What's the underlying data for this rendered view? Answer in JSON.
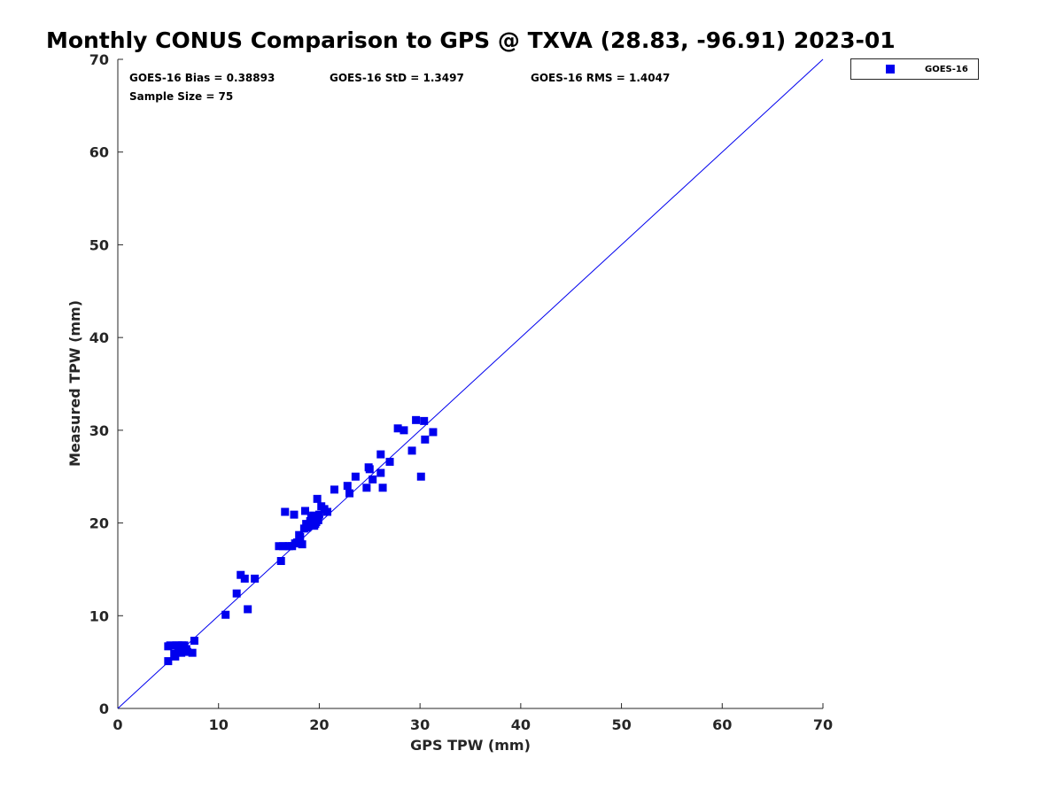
{
  "chart_data": {
    "type": "scatter",
    "title": "Monthly CONUS Comparison to GPS @ TXVA (28.83, -96.91) 2023-01",
    "xlabel": "GPS TPW (mm)",
    "ylabel": "Measured TPW (mm)",
    "xlim": [
      0,
      70
    ],
    "ylim": [
      0,
      70
    ],
    "xticks": [
      0,
      10,
      20,
      30,
      40,
      50,
      60,
      70
    ],
    "yticks": [
      0,
      10,
      20,
      30,
      40,
      50,
      60,
      70
    ],
    "grid": false,
    "legend_position": "outside-top-right",
    "reference_line": {
      "from": [
        0,
        0
      ],
      "to": [
        70,
        70
      ],
      "color": "#0000ee"
    },
    "stats": {
      "bias": "GOES-16 Bias = 0.38893",
      "std": "GOES-16 StD = 1.3497",
      "rms": "GOES-16 RMS = 1.4047",
      "sample_size": "Sample Size = 75"
    },
    "series": [
      {
        "name": "GOES-16",
        "color": "#0000ee",
        "marker": "square",
        "x": [
          5.0,
          5.0,
          5.2,
          5.6,
          5.7,
          5.8,
          6.0,
          6.0,
          6.1,
          6.2,
          6.3,
          6.4,
          6.5,
          6.6,
          7.4,
          7.6,
          10.7,
          11.8,
          12.2,
          12.6,
          12.9,
          13.6,
          16.0,
          16.2,
          16.4,
          16.6,
          16.8,
          17.0,
          17.3,
          17.5,
          17.6,
          17.8,
          18.0,
          18.1,
          18.3,
          18.5,
          18.6,
          18.8,
          18.9,
          19.1,
          19.2,
          19.4,
          19.5,
          19.6,
          19.7,
          19.8,
          19.9,
          20.0,
          20.2,
          20.5,
          20.8,
          21.5,
          22.8,
          23.0,
          23.6,
          24.7,
          24.9,
          25.0,
          25.3,
          26.1,
          26.1,
          26.3,
          27.0,
          27.8,
          28.4,
          29.2,
          29.6,
          30.1,
          30.4,
          30.5,
          31.3,
          6.8,
          6.9,
          19.3,
          18.7
        ],
        "y": [
          6.7,
          5.1,
          6.8,
          5.9,
          5.6,
          6.8,
          6.2,
          6.8,
          6.5,
          6.4,
          6.0,
          6.8,
          6.3,
          6.8,
          6.0,
          7.3,
          10.1,
          12.4,
          14.4,
          14.0,
          10.7,
          14.0,
          17.5,
          15.9,
          17.5,
          21.2,
          17.5,
          17.5,
          17.5,
          20.9,
          17.8,
          17.9,
          18.7,
          18.5,
          17.7,
          19.4,
          21.3,
          19.5,
          19.7,
          20.2,
          20.6,
          20.8,
          19.7,
          19.9,
          20.1,
          22.6,
          20.3,
          20.9,
          21.8,
          21.5,
          21.2,
          23.6,
          24.0,
          23.2,
          25.0,
          23.8,
          26.0,
          25.8,
          24.7,
          27.4,
          25.4,
          23.8,
          26.6,
          30.2,
          30.0,
          27.8,
          31.1,
          25.0,
          31.0,
          29.0,
          29.8,
          6.4,
          6.1,
          20.4,
          19.9
        ]
      }
    ]
  }
}
